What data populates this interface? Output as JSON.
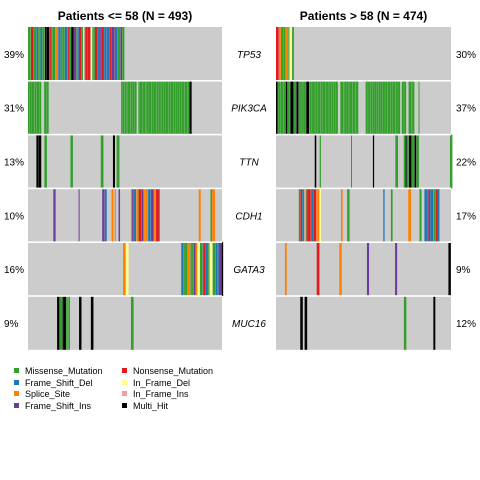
{
  "chart_data": {
    "type": "oncoplot",
    "panels": [
      {
        "title": "Patients <= 58 (N = 493)"
      },
      {
        "title": "Patients > 58 (N = 474)"
      }
    ],
    "genes": [
      "TP53",
      "PIK3CA",
      "TTN",
      "CDH1",
      "GATA3",
      "MUC16"
    ],
    "left_pct": [
      "39%",
      "31%",
      "13%",
      "10%",
      "16%",
      "9%"
    ],
    "right_pct": [
      "30%",
      "37%",
      "22%",
      "17%",
      "9%",
      "12%"
    ],
    "background_color": "#cccccc",
    "variant_colors": {
      "Missense_Mutation": "#33a02c",
      "Nonsense_Mutation": "#e31a1c",
      "Frame_Shift_Del": "#1f78b4",
      "In_Frame_Del": "#ffff99",
      "Splice_Site": "#ff7f00",
      "In_Frame_Ins": "#fb9a99",
      "Frame_Shift_Ins": "#6a3d9a",
      "Multi_Hit": "#000000"
    },
    "legend": [
      {
        "label": "Missense_Mutation",
        "color": "#33a02c"
      },
      {
        "label": "Nonsense_Mutation",
        "color": "#e31a1c"
      },
      {
        "label": "Frame_Shift_Del",
        "color": "#1f78b4"
      },
      {
        "label": "In_Frame_Del",
        "color": "#ffff99"
      },
      {
        "label": "Splice_Site",
        "color": "#ff7f00"
      },
      {
        "label": "In_Frame_Ins",
        "color": "#fb9a99"
      },
      {
        "label": "Frame_Shift_Ins",
        "color": "#6a3d9a"
      },
      {
        "label": "Multi_Hit",
        "color": "#000000"
      }
    ],
    "legend_position": "bottom-left"
  }
}
